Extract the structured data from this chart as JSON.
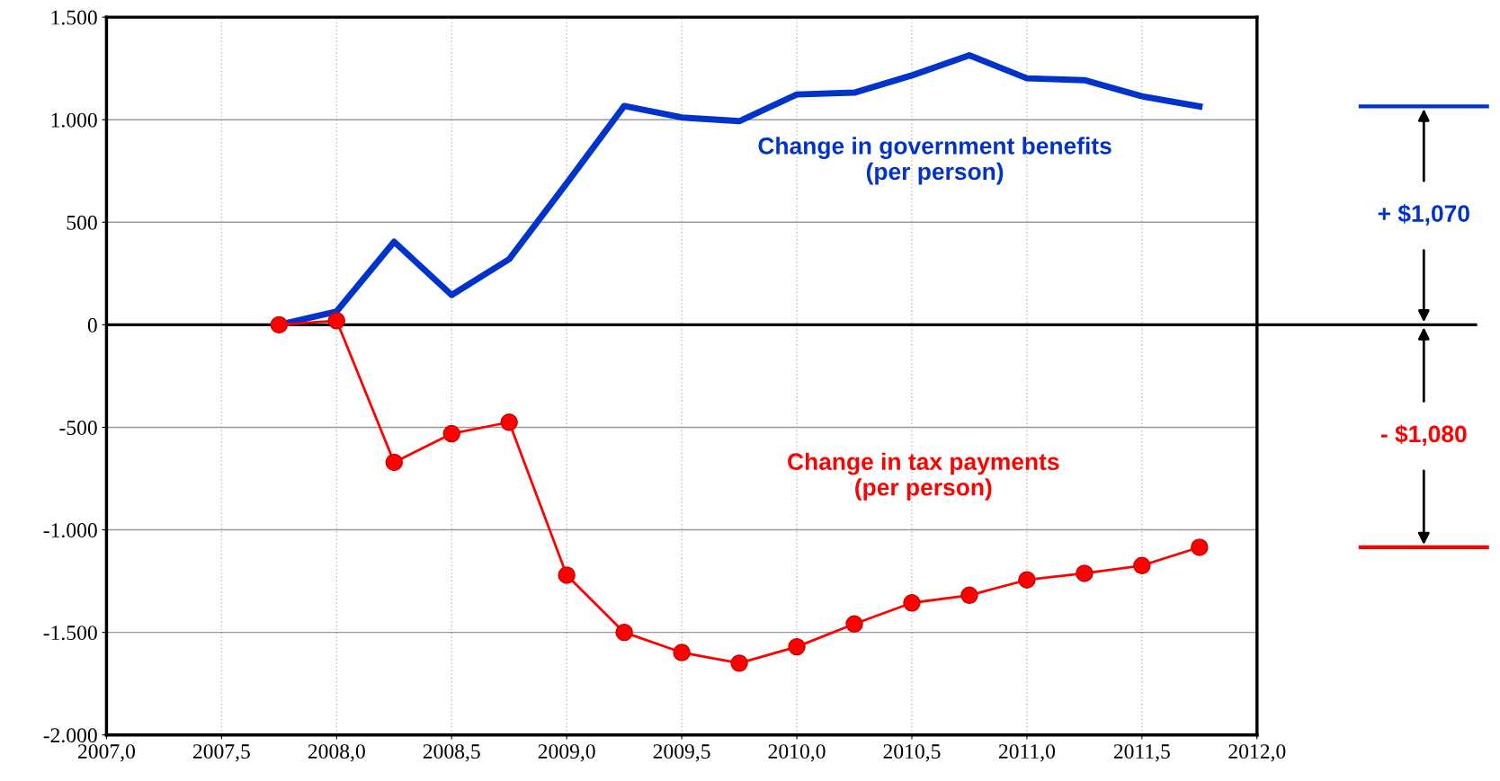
{
  "chart_data": {
    "type": "line",
    "x": [
      2007.75,
      2008.0,
      2008.25,
      2008.5,
      2008.75,
      2009.0,
      2009.25,
      2009.5,
      2009.75,
      2010.0,
      2010.25,
      2010.5,
      2010.75,
      2011.0,
      2011.25,
      2011.5,
      2011.75
    ],
    "series": [
      {
        "name": "Change in government benefits\n(per person)",
        "color": "#0033cc",
        "marker": "none",
        "values": [
          0,
          65,
          405,
          145,
          320,
          690,
          1067,
          1011,
          993,
          1123,
          1132,
          1216,
          1314,
          1202,
          1193,
          1114,
          1065
        ]
      },
      {
        "name": "Change in tax payments\n(per person)",
        "color": "#ff0000",
        "marker": "circle",
        "values": [
          0,
          20,
          -671,
          -531,
          -475,
          -1221,
          -1500,
          -1598,
          -1650,
          -1570,
          -1459,
          -1356,
          -1319,
          -1244,
          -1212,
          -1174,
          -1085
        ]
      }
    ],
    "xlim": [
      2007.0,
      2012.0
    ],
    "xticks": [
      {
        "value": 2007.0,
        "label": "2007,0"
      },
      {
        "value": 2007.5,
        "label": "2007,5"
      },
      {
        "value": 2008.0,
        "label": "2008,0"
      },
      {
        "value": 2008.5,
        "label": "2008,5"
      },
      {
        "value": 2009.0,
        "label": "2009,0"
      },
      {
        "value": 2009.5,
        "label": "2009,5"
      },
      {
        "value": 2010.0,
        "label": "2010,0"
      },
      {
        "value": 2010.5,
        "label": "2010,5"
      },
      {
        "value": 2011.0,
        "label": "2011,0"
      },
      {
        "value": 2011.5,
        "label": "2011,5"
      },
      {
        "value": 2012.0,
        "label": "2012,0"
      }
    ],
    "ylim": [
      -2000,
      1500
    ],
    "yticks": [
      {
        "value": -2000,
        "label": "-2.000"
      },
      {
        "value": -1500,
        "label": "-1.500"
      },
      {
        "value": -1000,
        "label": "-1.000"
      },
      -500,
      0,
      500,
      {
        "value": 1000,
        "label": "1.000"
      },
      {
        "value": 1500,
        "label": "1.500"
      }
    ],
    "grid": true,
    "ref_lines": [
      {
        "axis": "y",
        "value": 0,
        "color": "#000000"
      }
    ],
    "annotations": [
      "+ $1,070",
      "- $1,080"
    ]
  }
}
